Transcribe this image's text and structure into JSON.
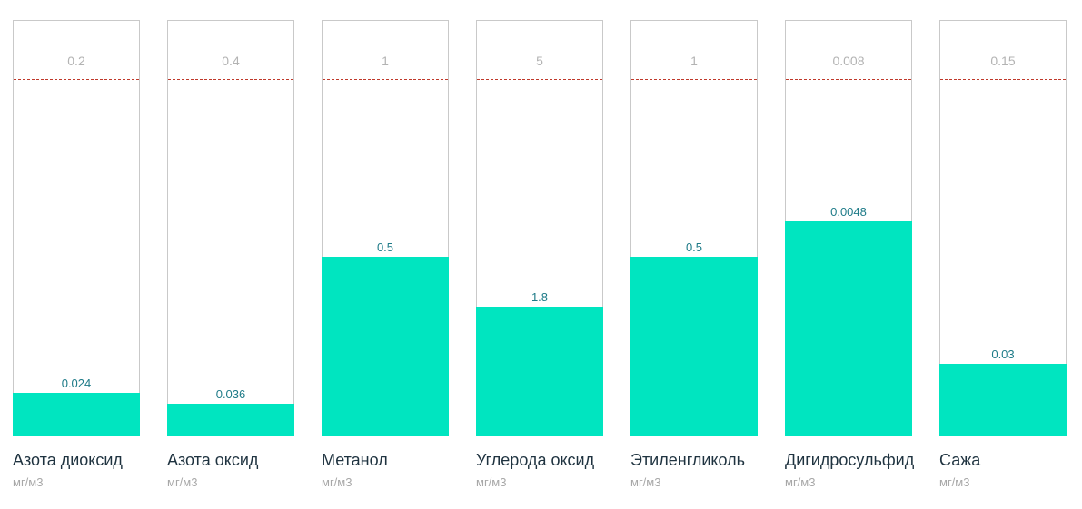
{
  "chart_data": {
    "type": "bar",
    "categories": [
      "Азота диоксид",
      "Азота оксид",
      "Метанол",
      "Углерода оксид",
      "Этиленгликоль",
      "Дигидросульфид",
      "Сажа"
    ],
    "unit": "мг/м3",
    "limits": [
      "0.2",
      "0.4",
      "1",
      "5",
      "1",
      "0.008",
      "0.15"
    ],
    "values": [
      "0.024",
      "0.036",
      "0.5",
      "1.8",
      "0.5",
      "0.0048",
      "0.03"
    ]
  }
}
